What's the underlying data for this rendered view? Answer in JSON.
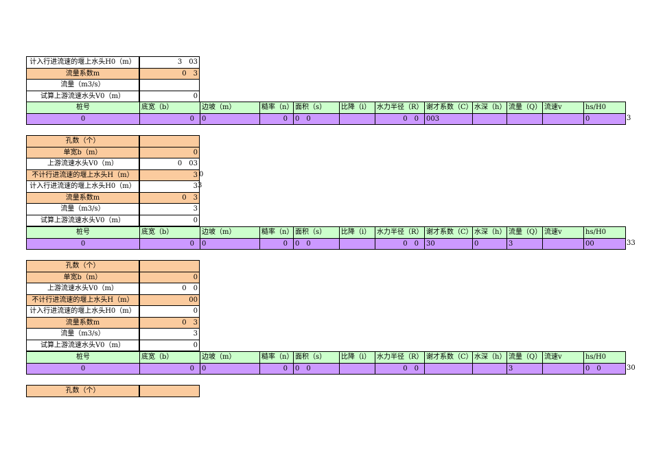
{
  "block1": {
    "params": [
      {
        "label": "计入行进流速的堰上水头H0（m）",
        "value": "3　03",
        "color": "white"
      },
      {
        "label": "流量系数m",
        "value": "0　3",
        "color": "peach"
      },
      {
        "label": "流量（m3/s）",
        "value": "",
        "color": "white"
      },
      {
        "label": "试算上游流速水头V0（m）",
        "value": "0",
        "color": "white"
      }
    ],
    "table_headers": [
      "桩号",
      "底宽（b）",
      "边坡（m）",
      "糙率（n）",
      "面积（s）",
      "比降（i）",
      "水力半径（R）",
      "谢才系数（C）",
      "水深（h）",
      "流量（Q）",
      "流速v",
      "hs/H0"
    ],
    "row": [
      "0",
      "0",
      "0",
      "0",
      "0　0",
      "",
      "0　0",
      "003",
      "",
      "",
      "",
      "0"
    ],
    "overflow": "3"
  },
  "block2": {
    "params": [
      {
        "label": "孔数（个）",
        "value": "",
        "color": "peach"
      },
      {
        "label": "单宽b（m）",
        "value": "0",
        "color": "peach"
      },
      {
        "label": "上游流速水头V0（m）",
        "value": "0　03",
        "color": "white"
      },
      {
        "label": "不计行进流速的堰上水头H（m）",
        "value": "3",
        "color": "peach"
      },
      {
        "label": "计入行进流速的堰上水头H0（m）",
        "value": "3",
        "color": "white"
      },
      {
        "label": "流量系数m",
        "value": "0　3",
        "color": "peach"
      },
      {
        "label": "流量（m3/s）",
        "value": "3",
        "color": "white"
      },
      {
        "label": "试算上游流速水头V0（m）",
        "value": "0",
        "color": "white"
      }
    ],
    "extra_h": "0",
    "extra_h0": "3",
    "table_headers": [
      "桩号",
      "底宽（b）",
      "边坡（m）",
      "糙率（n）",
      "面积（s）",
      "比降（i）",
      "水力半径（R）",
      "谢才系数（C）",
      "水深（h）",
      "流量（Q）",
      "流速v",
      "hs/H0"
    ],
    "row": [
      "0",
      "0",
      "0",
      "0",
      "0　0",
      "",
      "0　0",
      "30",
      "0",
      "3",
      "",
      "00"
    ],
    "overflow": "33"
  },
  "block3": {
    "params": [
      {
        "label": "孔数（个）",
        "value": "",
        "color": "peach"
      },
      {
        "label": "单宽b（m）",
        "value": "0",
        "color": "peach"
      },
      {
        "label": "上游流速水头V0（m）",
        "value": "0　0",
        "color": "white"
      },
      {
        "label": "不计行进流速的堰上水头H（m）",
        "value": "00",
        "color": "peach"
      },
      {
        "label": "计入行进流速的堰上水头H0（m）",
        "value": "0",
        "color": "white"
      },
      {
        "label": "流量系数m",
        "value": "0　3",
        "color": "peach"
      },
      {
        "label": "流量（m3/s）",
        "value": "3",
        "color": "white"
      },
      {
        "label": "试算上游流速水头V0（m）",
        "value": "0",
        "color": "white"
      }
    ],
    "table_headers": [
      "桩号",
      "底宽（b）",
      "边坡（m）",
      "糙率（n）",
      "面积（s）",
      "比降（i）",
      "水力半径（R）",
      "谢才系数（C）",
      "水深（h）",
      "流量（Q）",
      "流速v",
      "hs/H0"
    ],
    "row": [
      "0",
      "0",
      "0",
      "0",
      "0　0",
      "",
      "0　0",
      "",
      "",
      "3",
      "",
      "0　0"
    ],
    "overflow": "30"
  },
  "block4": {
    "params": [
      {
        "label": "孔数（个）",
        "value": "",
        "color": "peach"
      }
    ]
  }
}
